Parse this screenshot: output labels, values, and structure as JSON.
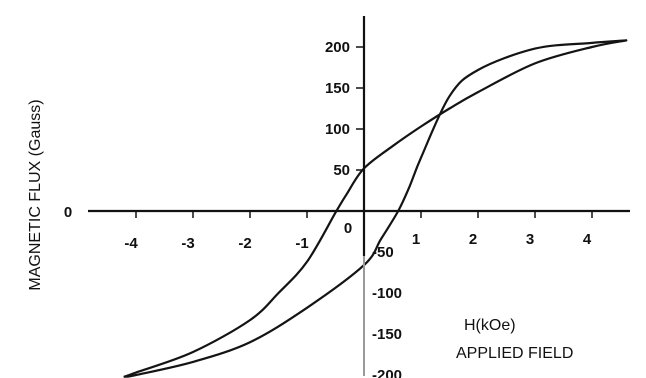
{
  "chart_data": {
    "type": "line",
    "title": "",
    "xlabel_line1": "H(kOe)",
    "xlabel_line2": "APPLIED FIELD",
    "ylabel": "MAGNETIC FLUX (Gauss)",
    "xlim": [
      -4.3,
      4.7
    ],
    "ylim": [
      -205,
      215
    ],
    "x_ticks": [
      "-4",
      "-3",
      "-2",
      "-1",
      "0",
      "1",
      "2",
      "3",
      "4"
    ],
    "x_tick_values": [
      -4,
      -3,
      -2,
      -1,
      0,
      1,
      2,
      3,
      4
    ],
    "y_ticks_positive": [
      "200",
      "150",
      "100",
      "50"
    ],
    "y_tick_values_positive": [
      200,
      150,
      100,
      50
    ],
    "y_ticks_negative": [
      "-50",
      "-100",
      "-150",
      "-200"
    ],
    "y_tick_values_negative": [
      -50,
      -100,
      -150,
      -200
    ],
    "origin_label": "0",
    "grid": false,
    "series": [
      {
        "x": [
          4.6,
          4.0,
          3.0,
          2.0,
          1.5,
          1.0,
          0.5,
          0.0,
          -0.3,
          -0.5,
          -1.0,
          -1.5,
          -2.0,
          -3.0,
          -4.0,
          -4.2
        ],
        "y": [
          208,
          200,
          180,
          145,
          125,
          103,
          79,
          52,
          21,
          -2,
          -62,
          -100,
          -133,
          -172,
          -197,
          -202
        ]
      },
      {
        "x": [
          -4.2,
          -4.0,
          -3.0,
          -2.0,
          -1.0,
          0.0,
          0.3,
          0.6,
          0.8,
          1.0,
          1.5,
          2.0,
          3.0,
          4.0,
          4.6
        ],
        "y": [
          -202,
          -200,
          -184,
          -160,
          -118,
          -66,
          -34,
          0,
          30,
          65,
          140,
          172,
          198,
          205,
          208
        ]
      }
    ]
  }
}
